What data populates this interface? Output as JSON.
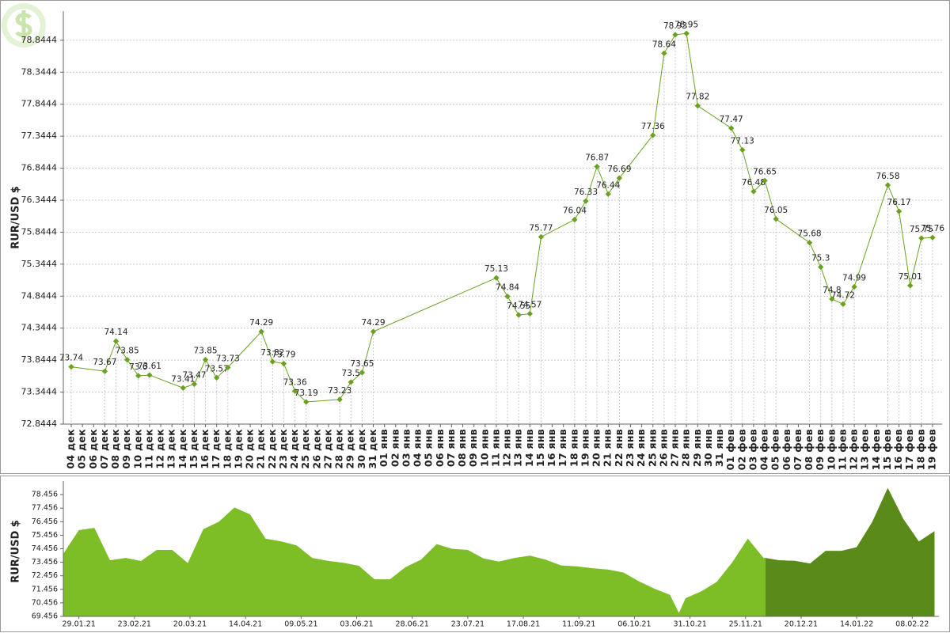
{
  "chart_data": [
    {
      "type": "line",
      "ylabel": "RUR/USD $",
      "categories": [
        "04 дек",
        "05 дек",
        "06 дек",
        "07 дек",
        "08 дек",
        "09 дек",
        "10 дек",
        "11 дек",
        "12 дек",
        "13 дек",
        "14 дек",
        "15 дек",
        "16 дек",
        "17 дек",
        "18 дек",
        "19 дек",
        "20 дек",
        "21 дек",
        "22 дек",
        "23 дек",
        "24 дек",
        "25 дек",
        "26 дек",
        "27 дек",
        "28 дек",
        "29 дек",
        "30 дек",
        "31 дек",
        "01 янв",
        "02 янв",
        "03 янв",
        "04 янв",
        "05 янв",
        "06 янв",
        "07 янв",
        "08 янв",
        "09 янв",
        "10 янв",
        "11 янв",
        "12 янв",
        "13 янв",
        "14 янв",
        "15 янв",
        "16 янв",
        "17 янв",
        "18 янв",
        "19 янв",
        "20 янв",
        "21 янв",
        "22 янв",
        "23 янв",
        "24 янв",
        "25 янв",
        "26 янв",
        "27 янв",
        "28 янв",
        "29 янв",
        "30 янв",
        "31 янв",
        "01 фев",
        "02 фев",
        "03 фев",
        "04 фев",
        "05 фев",
        "06 фев",
        "07 фев",
        "08 фев",
        "09 фев",
        "10 фев",
        "11 фев",
        "12 фев",
        "13 фев",
        "14 фев",
        "15 фев",
        "16 фев",
        "17 фев",
        "18 фев",
        "19 фев"
      ],
      "series": [
        {
          "color": "#6aa121",
          "values": [
            73.74,
            null,
            null,
            73.67,
            74.14,
            73.85,
            73.6,
            73.61,
            null,
            null,
            73.41,
            73.47,
            73.85,
            73.57,
            73.73,
            null,
            null,
            74.29,
            73.82,
            73.79,
            73.36,
            73.19,
            null,
            null,
            73.23,
            73.5,
            73.65,
            74.29,
            null,
            null,
            null,
            null,
            null,
            null,
            null,
            null,
            null,
            null,
            75.13,
            74.84,
            74.55,
            74.57,
            75.77,
            null,
            null,
            76.04,
            76.33,
            76.87,
            76.44,
            76.69,
            null,
            null,
            77.36,
            78.64,
            78.93,
            78.95,
            77.82,
            null,
            null,
            77.47,
            77.13,
            76.48,
            76.65,
            76.05,
            null,
            null,
            75.68,
            75.3,
            74.8,
            74.72,
            74.99,
            null,
            null,
            76.58,
            76.17,
            75.01,
            75.75,
            75.76
          ]
        }
      ],
      "ylim": [
        72.8444,
        79.3
      ],
      "yticks": [
        72.8444,
        73.3444,
        73.8444,
        74.3444,
        74.8444,
        75.3444,
        75.8444,
        76.3444,
        76.8444,
        77.3444,
        77.8444,
        78.3444,
        78.8444
      ],
      "grid": true,
      "data_labels": true,
      "connect_gaps": true
    },
    {
      "type": "area",
      "ylabel": "RUR/USD $",
      "x": [
        "2021-01-22",
        "2021-01-29",
        "2021-02-05",
        "2021-02-12",
        "2021-02-19",
        "2021-02-26",
        "2021-03-05",
        "2021-03-12",
        "2021-03-19",
        "2021-03-26",
        "2021-04-02",
        "2021-04-09",
        "2021-04-16",
        "2021-04-23",
        "2021-04-30",
        "2021-05-07",
        "2021-05-14",
        "2021-05-21",
        "2021-05-28",
        "2021-06-04",
        "2021-06-11",
        "2021-06-18",
        "2021-06-25",
        "2021-07-02",
        "2021-07-09",
        "2021-07-16",
        "2021-07-23",
        "2021-07-30",
        "2021-08-06",
        "2021-08-13",
        "2021-08-20",
        "2021-08-27",
        "2021-09-03",
        "2021-09-10",
        "2021-09-17",
        "2021-09-24",
        "2021-10-01",
        "2021-10-08",
        "2021-10-15",
        "2021-10-22",
        "2021-10-26",
        "2021-10-29",
        "2021-11-05",
        "2021-11-12",
        "2021-11-19",
        "2021-11-26",
        "2021-12-03",
        "2021-12-10",
        "2021-12-17",
        "2021-12-24",
        "2021-12-31",
        "2022-01-07",
        "2022-01-14",
        "2022-01-21",
        "2022-01-28",
        "2022-02-04",
        "2022-02-11",
        "2022-02-18"
      ],
      "values": [
        74.08,
        75.83,
        76.0,
        73.6,
        73.78,
        73.55,
        74.37,
        74.37,
        73.4,
        75.9,
        76.45,
        77.5,
        77.0,
        75.2,
        75.0,
        74.7,
        73.78,
        73.56,
        73.42,
        73.2,
        72.2,
        72.2,
        73.1,
        73.65,
        74.8,
        74.45,
        74.37,
        73.75,
        73.5,
        73.78,
        73.95,
        73.65,
        73.22,
        73.15,
        73.02,
        72.92,
        72.7,
        72.05,
        71.5,
        71.05,
        69.7,
        70.8,
        71.3,
        72.0,
        73.45,
        75.2,
        73.8,
        73.6,
        73.57,
        73.36,
        74.29,
        74.29,
        74.57,
        76.44,
        78.95,
        76.65,
        74.99,
        75.75
      ],
      "color": "#7dbd26",
      "selection": {
        "range": [
          "2021-12-04",
          "2022-02-20"
        ],
        "color": "#5a8a1a"
      },
      "xlim": [
        "2021-01-22",
        "2022-02-20"
      ],
      "xticks": [
        {
          "value": "2021-01-29",
          "label": "29.01.21"
        },
        {
          "value": "2021-02-23",
          "label": "23.02.21"
        },
        {
          "value": "2021-03-20",
          "label": "20.03.21"
        },
        {
          "value": "2021-04-14",
          "label": "14.04.21"
        },
        {
          "value": "2021-05-09",
          "label": "09.05.21"
        },
        {
          "value": "2021-06-03",
          "label": "03.06.21"
        },
        {
          "value": "2021-06-28",
          "label": "28.06.21"
        },
        {
          "value": "2021-07-23",
          "label": "23.07.21"
        },
        {
          "value": "2021-08-17",
          "label": "17.08.21"
        },
        {
          "value": "2021-09-11",
          "label": "11.09.21"
        },
        {
          "value": "2021-10-06",
          "label": "06.10.21"
        },
        {
          "value": "2021-10-31",
          "label": "31.10.21"
        },
        {
          "value": "2021-11-25",
          "label": "25.11.21"
        },
        {
          "value": "2021-12-20",
          "label": "20.12.21"
        },
        {
          "value": "2022-01-14",
          "label": "14.01.22"
        },
        {
          "value": "2022-02-08",
          "label": "08.02.22"
        }
      ],
      "ylim": [
        69.456,
        79.456
      ],
      "yticks": [
        69.456,
        70.456,
        71.456,
        72.456,
        73.456,
        74.456,
        75.456,
        76.456,
        77.456,
        78.456
      ],
      "grid": false
    }
  ]
}
